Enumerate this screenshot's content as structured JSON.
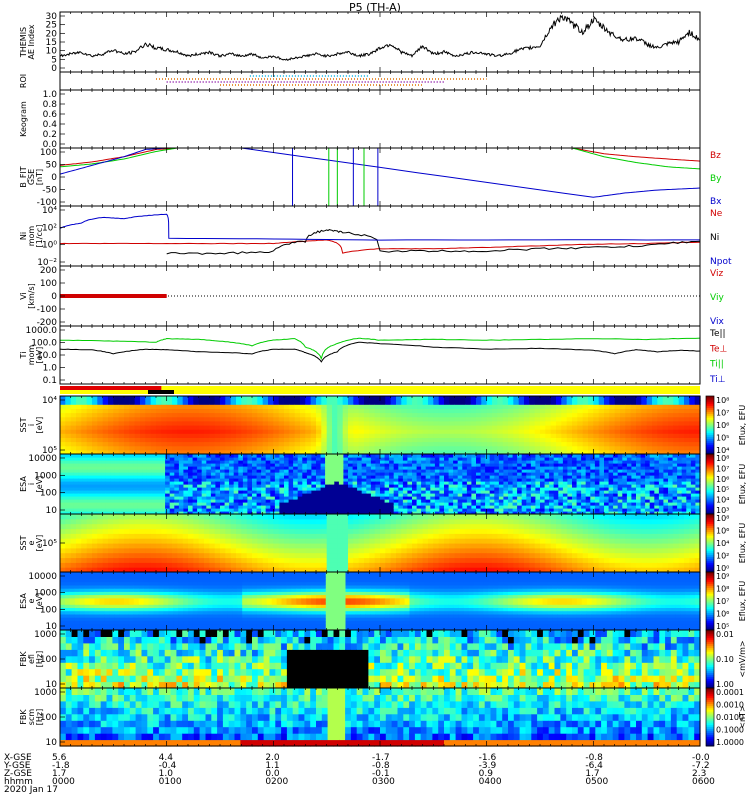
{
  "title": "P5 (TH-A)",
  "colors": {
    "red": "#d00000",
    "green": "#00cc00",
    "blue": "#0000cc",
    "black": "#000000",
    "roi_orange": "#e07000",
    "roi_cyan": "#00b0e0",
    "roi_purple": "#8000a0",
    "bar_red": "#e00000",
    "bar_yellow": "#ffff00"
  },
  "chart_data": [
    {
      "type": "line",
      "id": "ae",
      "ylabel": "THEMIS\nAE Index",
      "ylim": [
        0,
        30
      ],
      "yticks": [
        "30",
        "25",
        "20",
        "15",
        "10",
        "5",
        "0"
      ],
      "x": [
        0,
        0.1,
        0.2,
        0.3,
        0.4,
        0.5,
        0.6,
        0.7,
        0.8,
        0.9,
        1.0,
        1.1,
        1.2,
        1.3,
        1.4,
        1.5,
        1.6,
        1.7,
        1.8,
        1.9,
        2.0,
        2.1,
        2.2,
        2.3,
        2.4,
        2.5,
        2.6,
        2.7,
        2.8,
        2.9,
        3.0,
        3.1,
        3.2,
        3.3,
        3.4,
        3.5,
        3.6,
        3.7,
        3.8,
        3.9,
        4.0,
        4.1,
        4.2,
        4.3,
        4.4,
        4.5,
        4.6,
        4.7,
        4.8,
        4.9,
        5.0,
        5.1,
        5.2,
        5.3,
        5.4,
        5.5,
        5.6,
        5.7,
        5.8,
        5.9,
        6.0
      ],
      "values": [
        8,
        9,
        10,
        8,
        9,
        11,
        9,
        10,
        14,
        12,
        11,
        10,
        8,
        9,
        10,
        8,
        9,
        8,
        9,
        7,
        8,
        6,
        7,
        8,
        9,
        8,
        9,
        10,
        8,
        9,
        12,
        14,
        10,
        8,
        13,
        9,
        10,
        8,
        9,
        10,
        9,
        8,
        9,
        11,
        12,
        13,
        22,
        28,
        24,
        20,
        26,
        22,
        18,
        16,
        17,
        14,
        12,
        14,
        15,
        20,
        16
      ],
      "series_name": ""
    },
    {
      "type": "scatter",
      "id": "roi",
      "ylabel": "ROI",
      "rows": [
        {
          "color": "roi_cyan",
          "x": [
            1.78,
            2.9
          ]
        },
        {
          "color": "roi_orange",
          "x": [
            0.9,
            4.0
          ]
        },
        {
          "color": "roi_purple",
          "x": [
            1.0,
            3.6
          ]
        },
        {
          "color": "roi_orange",
          "x": [
            1.5,
            3.4
          ]
        }
      ]
    },
    {
      "type": "line",
      "id": "keogram",
      "ylabel": "Keogram",
      "ylim": [
        0,
        1.0
      ],
      "yticks": [
        "1.0",
        "0.8",
        "0.6",
        "0.4",
        "0.2",
        "0.0"
      ]
    },
    {
      "type": "line",
      "id": "bfit",
      "ylabel": "B_FIT\nGSE\n[nT]",
      "ylim": [
        -100,
        100
      ],
      "yticks": [
        "100",
        "50",
        "0",
        "-50",
        "-100"
      ],
      "series": [
        {
          "name": "Bz",
          "color": "red",
          "x": [
            0,
            0.3,
            0.6,
            0.9,
            1.1,
            4.8,
            5.1,
            5.4,
            5.7,
            6.0
          ],
          "values": [
            40,
            52,
            70,
            95,
            100,
            100,
            80,
            70,
            62,
            55
          ]
        },
        {
          "name": "By",
          "color": "green",
          "x": [
            0,
            0.3,
            0.6,
            0.9,
            1.1,
            4.8,
            5.1,
            5.4,
            5.7,
            6.0
          ],
          "values": [
            35,
            45,
            62,
            88,
            100,
            100,
            70,
            50,
            35,
            28
          ]
        },
        {
          "name": "Bx",
          "color": "blue",
          "x": [
            0,
            0.3,
            0.6,
            0.8,
            1.0,
            1.7,
            5.0,
            5.3,
            5.6,
            6.0
          ],
          "values": [
            10,
            40,
            70,
            95,
            100,
            100,
            -70,
            -55,
            -45,
            -38
          ]
        }
      ],
      "legend": [
        "Bz",
        "By",
        "Bx"
      ]
    },
    {
      "type": "line",
      "id": "ni",
      "ylabel": "Ni\nmom\n[1/cc]",
      "ylim": [
        0.001,
        100000
      ],
      "yticks": [
        "10⁴",
        "10²",
        "10⁰",
        "10⁻²"
      ],
      "series": [
        {
          "name": "Ne",
          "color": "red",
          "x": [
            0,
            0.5,
            1.0,
            1.5,
            2.0,
            2.3,
            2.5,
            2.65,
            3.0,
            3.5,
            4.0,
            4.5,
            5.0,
            5.5,
            6.0
          ],
          "values": [
            1,
            1,
            1,
            1,
            1,
            2,
            3,
            0.05,
            0.2,
            0.2,
            0.3,
            0.5,
            0.8,
            1,
            1.5
          ]
        },
        {
          "name": "Ni",
          "color": "black",
          "x": [
            1.0,
            1.5,
            2.0,
            2.3,
            2.5,
            2.65,
            3.0,
            3.5,
            4.0,
            4.5,
            5.0,
            5.5,
            6.0
          ],
          "values": [
            0.05,
            0.05,
            0.08,
            2,
            60,
            30,
            0.1,
            0.1,
            0.1,
            0.2,
            0.3,
            0.5,
            2
          ]
        },
        {
          "name": "Npot",
          "color": "blue",
          "x": [
            0,
            0.2,
            0.4,
            0.6,
            0.8,
            1.0,
            1.02,
            3.0,
            6.0
          ],
          "values": [
            100,
            500,
            3000,
            2000,
            5000,
            8000,
            5,
            3,
            3
          ]
        }
      ],
      "legend": [
        "Ne",
        "Ni",
        "Npot"
      ]
    },
    {
      "type": "line",
      "id": "vi",
      "ylabel": "Vi\n[km/s]",
      "ylim": [
        -200,
        200
      ],
      "yticks": [
        "200",
        "100",
        "0",
        "-100",
        "-200"
      ],
      "series": [
        {
          "name": "Viz",
          "color": "red",
          "x": [
            0,
            1.0
          ],
          "values": [
            0,
            0
          ]
        },
        {
          "name": "Viy",
          "color": "green",
          "x": [],
          "values": []
        },
        {
          "name": "Vix",
          "color": "blue",
          "x": [],
          "values": []
        }
      ],
      "legend": [
        "Viz",
        "Viy",
        "Vix"
      ]
    },
    {
      "type": "line",
      "id": "ti",
      "ylabel": "Ti\nmom\n[eV]",
      "ylim": [
        0.1,
        10000
      ],
      "yticks": [
        "1000.0",
        "100.0",
        "10.0",
        "1.0",
        "0.1"
      ],
      "series": [
        {
          "name": "Te||",
          "color": "black",
          "x": [
            0,
            0.3,
            0.5,
            0.8,
            1.0,
            1.3,
            1.6,
            1.8,
            2.0,
            2.2,
            2.3,
            2.45,
            2.6,
            2.8,
            3.0,
            3.5,
            4.0,
            4.5,
            5.0,
            5.2,
            5.4,
            5.6,
            5.8,
            6.0
          ],
          "values": [
            100,
            90,
            40,
            100,
            90,
            60,
            50,
            40,
            100,
            100,
            50,
            8,
            60,
            400,
            300,
            150,
            100,
            120,
            80,
            40,
            90,
            60,
            80,
            70
          ]
        },
        {
          "name": "Ti||",
          "color": "green",
          "x": [
            0,
            0.5,
            0.9,
            1.0,
            1.3,
            1.6,
            1.8,
            2.0,
            2.2,
            2.3,
            2.45,
            2.6,
            2.8,
            3.0,
            3.5,
            4.0,
            4.5,
            5.0,
            5.5,
            6.0
          ],
          "values": [
            600,
            500,
            400,
            800,
            700,
            400,
            200,
            600,
            800,
            150,
            15,
            300,
            900,
            600,
            700,
            600,
            700,
            800,
            700,
            900
          ]
        }
      ],
      "legend": [
        "Te||",
        "Te⊥",
        "Ti||",
        "Ti⊥"
      ]
    },
    {
      "type": "heatmap",
      "id": "sst_ion",
      "ylabel": "SST\ni\n[eV]",
      "yticks": [
        "10⁴",
        "10⁵"
      ],
      "colorbar": {
        "label": "Eflux, EFU",
        "ticks": [
          "10⁴",
          "10⁵",
          "10⁶",
          "10⁷",
          "10⁸"
        ]
      }
    },
    {
      "type": "heatmap",
      "id": "esa_ion",
      "ylabel": "ESA\ni\n[eV]",
      "yticks": [
        "10000",
        "1000",
        "100",
        "10"
      ],
      "colorbar": {
        "label": "Eflux, EFU",
        "ticks": [
          "10³",
          "10⁴",
          "10⁵",
          "10⁶",
          "10⁷",
          "10⁸"
        ]
      }
    },
    {
      "type": "heatmap",
      "id": "sst_elec",
      "ylabel": "SST\ne\n[eV]",
      "yticks": [
        "10⁵"
      ],
      "colorbar": {
        "label": "Eflux, EFU",
        "ticks": [
          "10⁰",
          "10²",
          "10⁴",
          "10⁶",
          "10⁸"
        ]
      }
    },
    {
      "type": "heatmap",
      "id": "esa_elec",
      "ylabel": "ESA\ne\n[eV]",
      "yticks": [
        "10000",
        "1000",
        "100",
        "10"
      ],
      "colorbar": {
        "label": "Eflux, EFU",
        "ticks": [
          "10⁵",
          "10⁶",
          "10⁷",
          "10⁸",
          "10⁹"
        ]
      }
    },
    {
      "type": "heatmap",
      "id": "fbk_e",
      "ylabel": "FBK\nefi\n[Hz]",
      "yticks": [
        "1000",
        "100",
        "10"
      ],
      "colorbar": {
        "label": "<mV/m>",
        "ticks": [
          "1.00",
          "0.10",
          "0.01"
        ]
      }
    },
    {
      "type": "heatmap",
      "id": "fbk_b",
      "ylabel": "FBK\nscm\n[Hz]",
      "yticks": [
        "1000",
        "100",
        "10"
      ],
      "colorbar": {
        "label": "<nT>",
        "ticks": [
          "1.0000",
          "0.1000",
          "0.0100",
          "0.0010",
          "0.0001"
        ]
      }
    }
  ],
  "footer": {
    "row_labels": [
      "X-GSE",
      "Y-GSE",
      "Z-GSE",
      "hhmm",
      "2020 Jan 17"
    ],
    "columns": [
      {
        "x": "5.6",
        "y": "-1.8",
        "z": "1.7",
        "t": "0000"
      },
      {
        "x": "4.4",
        "y": "-0.4",
        "z": "1.0",
        "t": "0100"
      },
      {
        "x": "2.0",
        "y": "1.1",
        "z": "0.0",
        "t": "0200"
      },
      {
        "x": "-1.7",
        "y": "-0.8",
        "z": "-0.1",
        "t": "0300"
      },
      {
        "x": "-1.6",
        "y": "-3.9",
        "z": "0.9",
        "t": "0400"
      },
      {
        "x": "-0.8",
        "y": "-6.4",
        "z": "1.7",
        "t": "0500"
      },
      {
        "x": "-0.0",
        "y": "-7.2",
        "z": "2.3",
        "t": "0600"
      }
    ]
  }
}
